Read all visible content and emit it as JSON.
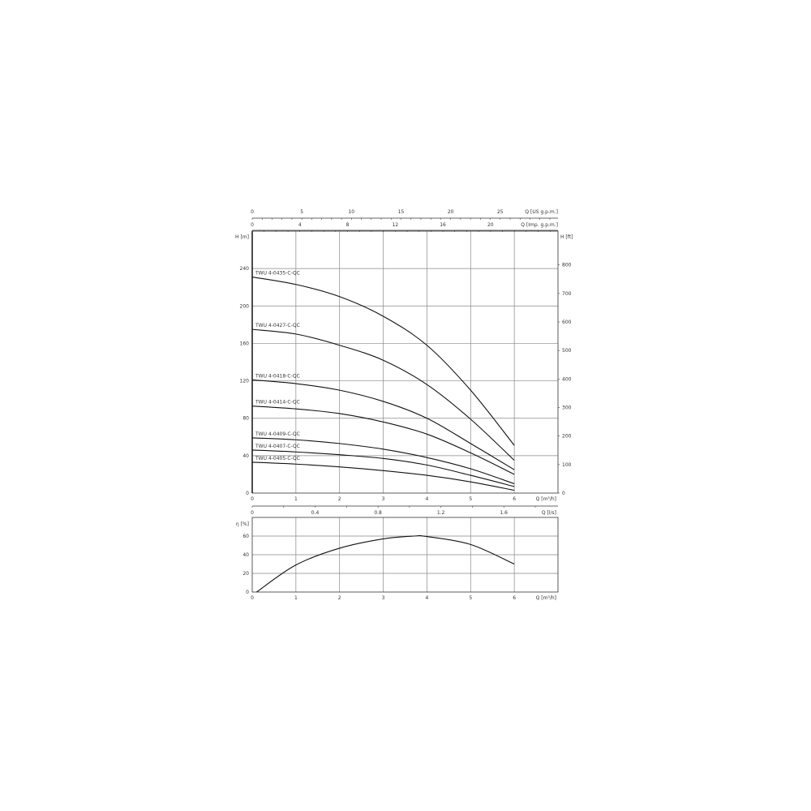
{
  "chart_data": [
    {
      "type": "line",
      "xlabel": "Q [m³/h]",
      "ylabel": "H [m]",
      "ylabel_right": "H [ft]",
      "top_axes": [
        {
          "label": "Q [US g.p.m.]",
          "ticks": [
            0,
            5,
            10,
            15,
            20,
            25
          ],
          "factor": 4.403
        },
        {
          "label": "Q [Imp. g.p.m.]",
          "ticks": [
            0,
            4,
            8,
            12,
            16,
            20
          ],
          "factor": 3.666
        }
      ],
      "xlim": [
        0,
        7
      ],
      "ylim": [
        0,
        280
      ],
      "xticks": [
        0,
        1,
        2,
        3,
        4,
        5,
        6
      ],
      "yticks": [
        0,
        40,
        80,
        120,
        160,
        200,
        240
      ],
      "yticks_right": [
        0,
        100,
        200,
        300,
        400,
        500,
        600,
        700,
        800
      ],
      "grid": true,
      "x": [
        0,
        1,
        2,
        3,
        4,
        5,
        6
      ],
      "series": [
        {
          "name": "TWU 4-0435-C-QC",
          "values": [
            231,
            223,
            210,
            189,
            158,
            110,
            51
          ]
        },
        {
          "name": "TWU 4-0427-C-QC",
          "values": [
            175,
            170,
            158,
            142,
            116,
            79,
            35
          ]
        },
        {
          "name": "TWU 4-0418-C-QC",
          "values": [
            121,
            117,
            110,
            98,
            80,
            53,
            25
          ]
        },
        {
          "name": "TWU 4-0414-C-QC",
          "values": [
            93,
            90,
            85,
            76,
            63,
            43,
            20
          ]
        },
        {
          "name": "TWU 4-0409-C-QC",
          "values": [
            59,
            57,
            53,
            47,
            38,
            26,
            10
          ]
        },
        {
          "name": "TWU 4-0407-C-QC",
          "values": [
            46,
            44,
            41,
            37,
            30,
            19,
            7
          ]
        },
        {
          "name": "TWU 4-0405-C-QC",
          "values": [
            33,
            31,
            28,
            24,
            19,
            12,
            3
          ]
        }
      ]
    },
    {
      "type": "line",
      "xlabel": "Q [m³/h]",
      "ylabel": "η [%]",
      "top_axis": {
        "label": "Q [l/s]",
        "ticks": [
          "0",
          "0.4",
          "0.8",
          "1.2",
          "1.6"
        ],
        "values": [
          0,
          0.4,
          0.8,
          1.2,
          1.6
        ]
      },
      "xlim": [
        0,
        7
      ],
      "ylim": [
        0,
        80
      ],
      "xticks": [
        0,
        1,
        2,
        3,
        4,
        5,
        6
      ],
      "yticks": [
        0,
        20,
        40,
        60
      ],
      "grid": true,
      "x": [
        0.1,
        1,
        2,
        3,
        3.7,
        4,
        5,
        6
      ],
      "values": [
        0,
        29,
        47,
        57,
        60,
        59.5,
        51,
        30
      ]
    }
  ]
}
